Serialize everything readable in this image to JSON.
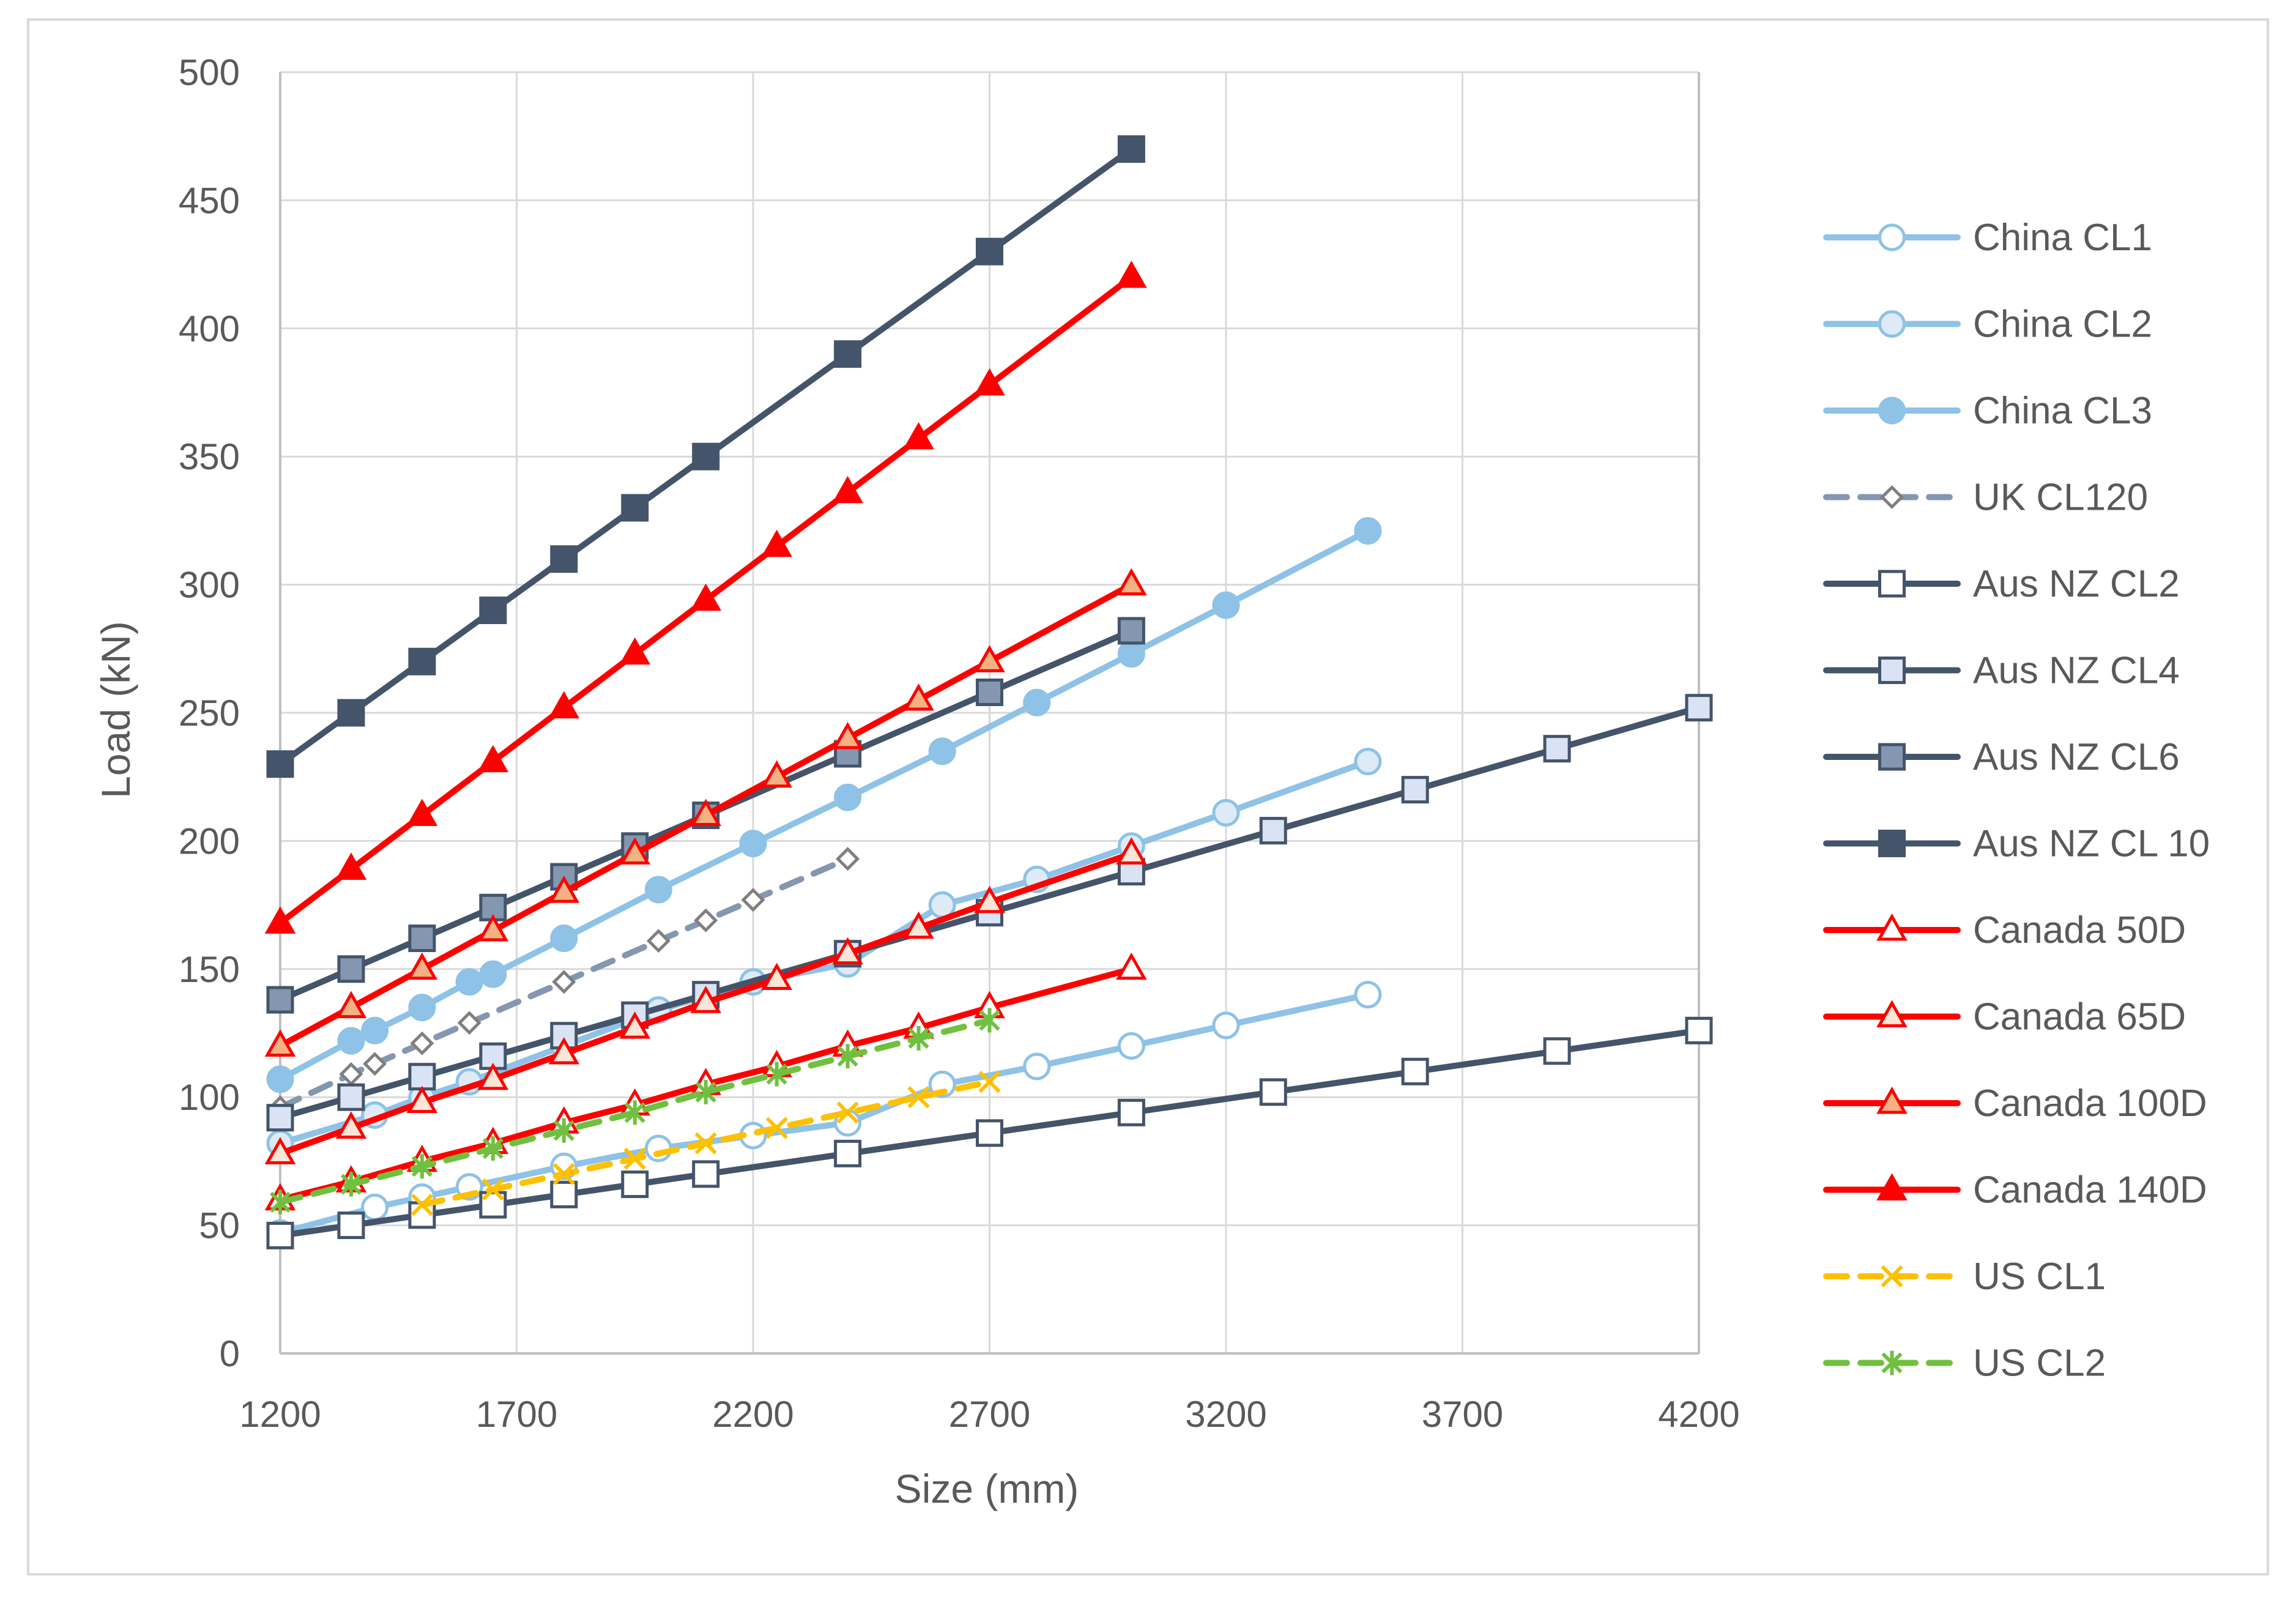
{
  "chart_data": {
    "type": "line",
    "xlabel": "Size (mm)",
    "ylabel": "Load (kN)",
    "xlim": [
      1200,
      4200
    ],
    "ylim": [
      0,
      500
    ],
    "x_ticks": [
      "1200",
      "1700",
      "2200",
      "2700",
      "3200",
      "3700",
      "4200"
    ],
    "y_ticks": [
      "0",
      "50",
      "100",
      "150",
      "200",
      "250",
      "300",
      "350",
      "400",
      "450",
      "500"
    ],
    "grid": "vertical and horizontal",
    "legend_position": "right",
    "series": [
      {
        "name": "China CL1",
        "color": "#8ec2e6",
        "marker": "circle-open",
        "dash": "solid",
        "points": [
          [
            1200,
            47
          ],
          [
            1400,
            57
          ],
          [
            1500,
            61
          ],
          [
            1600,
            65
          ],
          [
            1800,
            73
          ],
          [
            2000,
            80
          ],
          [
            2200,
            85
          ],
          [
            2400,
            90
          ],
          [
            2600,
            105
          ],
          [
            2800,
            112
          ],
          [
            3000,
            120
          ],
          [
            3200,
            128
          ],
          [
            3500,
            140
          ]
        ]
      },
      {
        "name": "China CL2",
        "color": "#8ec2e6",
        "marker": "circle-light",
        "dash": "solid",
        "points": [
          [
            1200,
            82
          ],
          [
            1400,
            93
          ],
          [
            1500,
            100
          ],
          [
            1600,
            106
          ],
          [
            1800,
            120
          ],
          [
            2000,
            134
          ],
          [
            2200,
            145
          ],
          [
            2400,
            152
          ],
          [
            2600,
            175
          ],
          [
            2800,
            185
          ],
          [
            3000,
            198
          ],
          [
            3200,
            211
          ],
          [
            3500,
            231
          ]
        ]
      },
      {
        "name": "China CL3",
        "color": "#8ec2e6",
        "marker": "circle-filled",
        "dash": "solid",
        "points": [
          [
            1200,
            107
          ],
          [
            1350,
            122
          ],
          [
            1400,
            126
          ],
          [
            1500,
            135
          ],
          [
            1600,
            145
          ],
          [
            1650,
            148
          ],
          [
            1800,
            162
          ],
          [
            2000,
            181
          ],
          [
            2200,
            199
          ],
          [
            2400,
            217
          ],
          [
            2600,
            235
          ],
          [
            2800,
            254
          ],
          [
            3000,
            273
          ],
          [
            3200,
            292
          ],
          [
            3500,
            321
          ]
        ]
      },
      {
        "name": "UK CL120",
        "color": "#8497b0",
        "marker": "diamond-open",
        "dash": "dashed",
        "points": [
          [
            1200,
            96
          ],
          [
            1350,
            109
          ],
          [
            1400,
            113
          ],
          [
            1500,
            121
          ],
          [
            1600,
            129
          ],
          [
            1800,
            145
          ],
          [
            2000,
            161
          ],
          [
            2100,
            169
          ],
          [
            2200,
            177
          ],
          [
            2400,
            193
          ]
        ]
      },
      {
        "name": "Aus NZ CL2",
        "color": "#44546a",
        "marker": "square-open",
        "dash": "solid",
        "points": [
          [
            1200,
            46
          ],
          [
            1350,
            50
          ],
          [
            1500,
            54
          ],
          [
            1650,
            58
          ],
          [
            1800,
            62
          ],
          [
            1950,
            66
          ],
          [
            2100,
            70
          ],
          [
            2400,
            78
          ],
          [
            2700,
            86
          ],
          [
            3000,
            94
          ],
          [
            3300,
            102
          ],
          [
            3600,
            110
          ],
          [
            3900,
            118
          ],
          [
            4200,
            126
          ]
        ]
      },
      {
        "name": "Aus NZ CL4",
        "color": "#44546a",
        "marker": "square-light",
        "dash": "solid",
        "points": [
          [
            1200,
            92
          ],
          [
            1350,
            100
          ],
          [
            1500,
            108
          ],
          [
            1650,
            116
          ],
          [
            1800,
            124
          ],
          [
            1950,
            132
          ],
          [
            2100,
            140
          ],
          [
            2400,
            156
          ],
          [
            2700,
            172
          ],
          [
            3000,
            188
          ],
          [
            3300,
            204
          ],
          [
            3600,
            220
          ],
          [
            3900,
            236
          ],
          [
            4200,
            252
          ]
        ]
      },
      {
        "name": "Aus NZ CL6",
        "color": "#44546a",
        "marker": "square-mid",
        "dash": "solid",
        "points": [
          [
            1200,
            138
          ],
          [
            1350,
            150
          ],
          [
            1500,
            162
          ],
          [
            1650,
            174
          ],
          [
            1800,
            186
          ],
          [
            1950,
            198
          ],
          [
            2100,
            210
          ],
          [
            2400,
            234
          ],
          [
            2700,
            258
          ],
          [
            3000,
            282
          ]
        ]
      },
      {
        "name": "Aus NZ CL 10",
        "color": "#44546a",
        "marker": "square-dark",
        "dash": "solid",
        "points": [
          [
            1200,
            230
          ],
          [
            1350,
            250
          ],
          [
            1500,
            270
          ],
          [
            1650,
            290
          ],
          [
            1800,
            310
          ],
          [
            1950,
            330
          ],
          [
            2100,
            350
          ],
          [
            2400,
            390
          ],
          [
            2700,
            430
          ],
          [
            3000,
            470
          ]
        ]
      },
      {
        "name": "Canada 50D",
        "color": "#ff0000",
        "marker": "triangle-open",
        "dash": "solid",
        "points": [
          [
            1200,
            60
          ],
          [
            1350,
            67
          ],
          [
            1500,
            75
          ],
          [
            1650,
            82
          ],
          [
            1800,
            90
          ],
          [
            1950,
            97
          ],
          [
            2100,
            105
          ],
          [
            2250,
            112
          ],
          [
            2400,
            120
          ],
          [
            2550,
            127
          ],
          [
            2700,
            135
          ],
          [
            3000,
            150
          ]
        ]
      },
      {
        "name": "Canada 65D",
        "color": "#ff0000",
        "marker": "triangle-peach",
        "dash": "solid",
        "points": [
          [
            1200,
            78
          ],
          [
            1350,
            88
          ],
          [
            1500,
            98
          ],
          [
            1650,
            107
          ],
          [
            1800,
            117
          ],
          [
            1950,
            127
          ],
          [
            2100,
            137
          ],
          [
            2250,
            146
          ],
          [
            2400,
            156
          ],
          [
            2550,
            166
          ],
          [
            2700,
            176
          ],
          [
            3000,
            195
          ]
        ]
      },
      {
        "name": "Canada 100D",
        "color": "#ff0000",
        "marker": "triangle-orange",
        "dash": "solid",
        "points": [
          [
            1200,
            120
          ],
          [
            1350,
            135
          ],
          [
            1500,
            150
          ],
          [
            1650,
            165
          ],
          [
            1800,
            180
          ],
          [
            1950,
            195
          ],
          [
            2100,
            210
          ],
          [
            2250,
            225
          ],
          [
            2400,
            240
          ],
          [
            2550,
            255
          ],
          [
            2700,
            270
          ],
          [
            3000,
            300
          ]
        ]
      },
      {
        "name": "Canada 140D",
        "color": "#ff0000",
        "marker": "triangle-filled",
        "dash": "solid",
        "points": [
          [
            1200,
            168
          ],
          [
            1350,
            189
          ],
          [
            1500,
            210
          ],
          [
            1650,
            231
          ],
          [
            1800,
            252
          ],
          [
            1950,
            273
          ],
          [
            2100,
            294
          ],
          [
            2250,
            315
          ],
          [
            2400,
            336
          ],
          [
            2550,
            357
          ],
          [
            2700,
            378
          ],
          [
            3000,
            420
          ]
        ]
      },
      {
        "name": "US CL1",
        "color": "#ffc000",
        "marker": "x",
        "dash": "dashed",
        "points": [
          [
            1500,
            58
          ],
          [
            1650,
            64
          ],
          [
            1800,
            70
          ],
          [
            1950,
            76
          ],
          [
            2100,
            82
          ],
          [
            2250,
            88
          ],
          [
            2400,
            94
          ],
          [
            2550,
            100
          ],
          [
            2700,
            106
          ]
        ]
      },
      {
        "name": "US CL2",
        "color": "#70c040",
        "marker": "star",
        "dash": "dashed",
        "points": [
          [
            1200,
            59
          ],
          [
            1350,
            66
          ],
          [
            1500,
            73
          ],
          [
            1650,
            80
          ],
          [
            1800,
            87
          ],
          [
            1950,
            94
          ],
          [
            2100,
            102
          ],
          [
            2250,
            109
          ],
          [
            2400,
            116
          ],
          [
            2550,
            123
          ],
          [
            2700,
            130
          ]
        ]
      }
    ]
  }
}
